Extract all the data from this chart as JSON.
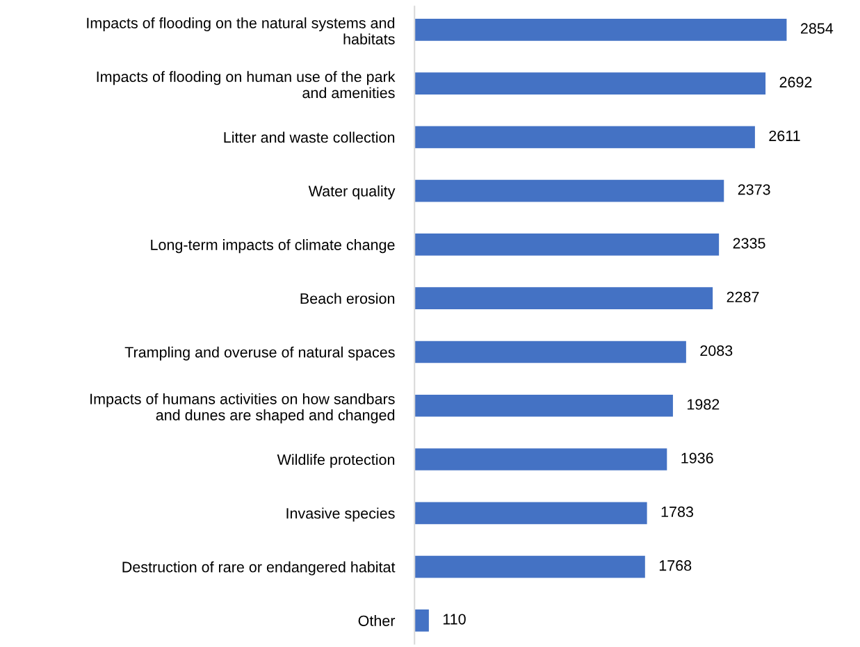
{
  "chart_data": {
    "type": "bar",
    "orientation": "horizontal",
    "categories": [
      "Impacts of flooding on the natural systems and\nhabitats",
      "Impacts of flooding on human use of the park\nand amenities",
      "Litter and waste collection",
      "Water quality",
      "Long-term impacts of climate change",
      "Beach erosion",
      "Trampling and overuse of natural spaces",
      "Impacts of humans activities on how sandbars\nand dunes are shaped and changed",
      "Wildlife protection",
      "Invasive species",
      "Destruction of rare or endangered habitat",
      "Other"
    ],
    "values": [
      2854,
      2692,
      2611,
      2373,
      2335,
      2287,
      2083,
      1982,
      1936,
      1783,
      1768,
      110
    ],
    "color": "#4472c4",
    "data_labels": true,
    "grid": false,
    "legend": false
  }
}
